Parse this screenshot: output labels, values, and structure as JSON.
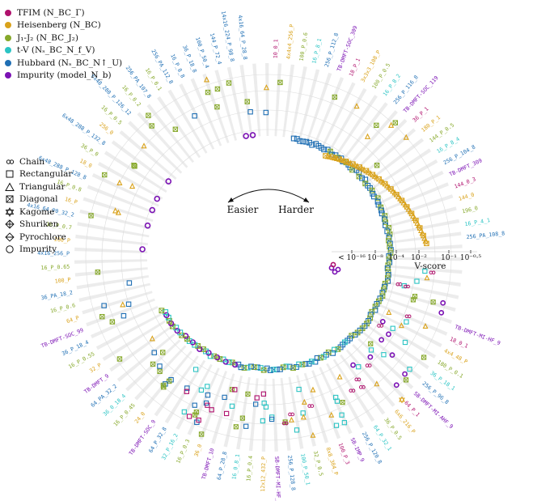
{
  "legend_families": [
    {
      "label": "TFIM (N_BC_Γ)",
      "color": "#b0116d",
      "key": "tfim"
    },
    {
      "label": "Heisenberg (N_BC)",
      "color": "#d9a21b",
      "key": "heis"
    },
    {
      "label": "J₁-J₂ (N_BC_J₂)",
      "color": "#86a82a",
      "key": "j1j2"
    },
    {
      "label": "t-V (Nₛ_BC_N_f_V)",
      "color": "#2bc4c4",
      "key": "tv"
    },
    {
      "label": "Hubbard (Nₛ_BC_N↑_U)",
      "color": "#1f6fb4",
      "key": "hub"
    },
    {
      "label": "Impurity (model_N_b)",
      "color": "#7b12b4",
      "key": "imp"
    }
  ],
  "legend_lattices": [
    {
      "label": "Chain",
      "marker": "chain"
    },
    {
      "label": "Rectangular",
      "marker": "square"
    },
    {
      "label": "Triangular",
      "marker": "triangle"
    },
    {
      "label": "Diagonal",
      "marker": "diag"
    },
    {
      "label": "Kagome",
      "marker": "star"
    },
    {
      "label": "Shuriken",
      "marker": "shuriken"
    },
    {
      "label": "Pyrochlore",
      "marker": "pyro"
    },
    {
      "label": "Impurity",
      "marker": "circle"
    }
  ],
  "annotations": {
    "easier": "Easier",
    "harder": "Harder",
    "vscore": "V-score"
  },
  "chart_data": {
    "type": "scatter",
    "title": "",
    "projection": "polar",
    "xlabel": "V-score",
    "radial_axis": {
      "scale": "log",
      "ticks": [
        {
          "value": 1e-16,
          "label": "< 10⁻¹⁶"
        },
        {
          "value": 1e-08,
          "label": "10⁻⁸"
        },
        {
          "value": 0.0001,
          "label": "10⁻⁴"
        },
        {
          "value": 0.01,
          "label": "10⁻²"
        },
        {
          "value": 0.1,
          "label": "10⁻¹"
        },
        {
          "value": 0.316,
          "label": "10⁻⁰·⁵"
        }
      ]
    },
    "series": [
      {
        "name": "TFIM",
        "color": "#b0116d",
        "labels": [
          "10_0_1",
          "18_P_1",
          "36_P_1",
          "144_0_3",
          "32_P_0.5",
          "18_0_1",
          "64_P_1",
          "100_P_3"
        ]
      },
      {
        "name": "Heisenberg",
        "color": "#d9a21b",
        "labels": [
          "4x4x4_256_P",
          "3x3x3_108_P",
          "180_P_1",
          "144_0",
          "4x4x4_1024_P",
          "4x4_48_P",
          "6x6_216_P",
          "8x8_384_P",
          "12x12_432_P",
          "36_0",
          "24_0",
          "32_P",
          "64_P",
          "100_P",
          "200_P",
          "16_P",
          "18_0",
          "256_0"
        ]
      },
      {
        "name": "J1-J2",
        "color": "#86a82a",
        "labels": [
          "100_P_0.6",
          "100_P_0.5",
          "144_P_0.5",
          "196_0",
          "144_P_0.4",
          "180_P_0.1",
          "36_P_0.5",
          "32_P_0.5",
          "16_P_0.4",
          "16_P_0.3",
          "16_P_0.45",
          "16_P_0.55",
          "16_P_0.6",
          "16_P_0.65",
          "16_P_0.7",
          "16_P_0.8",
          "36_P_0",
          "16_P_0.5",
          "16_P_0.2",
          "16_P_0.1"
        ]
      },
      {
        "name": "t-V",
        "color": "#2bc4c4",
        "labels": [
          "16_P_8_1",
          "16_P_8_2",
          "16_P_8_4",
          "16_P_4_1",
          "16_P_2_1",
          "36_P_18_1",
          "64_P_32_1",
          "100_P_50_1",
          "16_0_8_1",
          "32_P_16_2",
          "36_0_18_4"
        ]
      },
      {
        "name": "Hubbard",
        "color": "#1f6fb4",
        "labels": [
          "256_P_112_8",
          "256_P_116_8",
          "256_P_104_8",
          "256_PA_108_8",
          "256_P_107_8",
          "256_P_96_8",
          "256_P_120_8",
          "256_P_128_8",
          "64_P_28_8",
          "64_P_32_8",
          "64_PA_32_2",
          "36_P_18_4",
          "36_PA_18_2",
          "4x16_256_P",
          "4x16_64_P0_32_2",
          "6x48_288_P_128_8",
          "6x48_288_P_132_8",
          "6x48_288_P_126_12",
          "256_PA_107_8",
          "256_PA_112_8",
          "16_P_8_8",
          "36_P_18_8",
          "100_P_50_4",
          "144_P_72_4",
          "14x16_224_P_98_8",
          "4x16_64_P_28_8"
        ]
      },
      {
        "name": "Impurity",
        "color": "#7b12b4",
        "labels": [
          "TB-DMFT-SOC_309",
          "TB-DMFT-SOC_119",
          "TB-DMFT_309",
          "TB-DMFT_119",
          "TB-DMFT-MI-HF_9",
          "SB-DMFT-MI-AHF_9",
          "SB-IMP_9",
          "SB-DMFT-MI-HF_9",
          "TB-DMFT_10",
          "TB-DMFT-SOC_9",
          "TB-DMFT_9",
          "TB-DMFT-SOC_99"
        ]
      }
    ]
  }
}
